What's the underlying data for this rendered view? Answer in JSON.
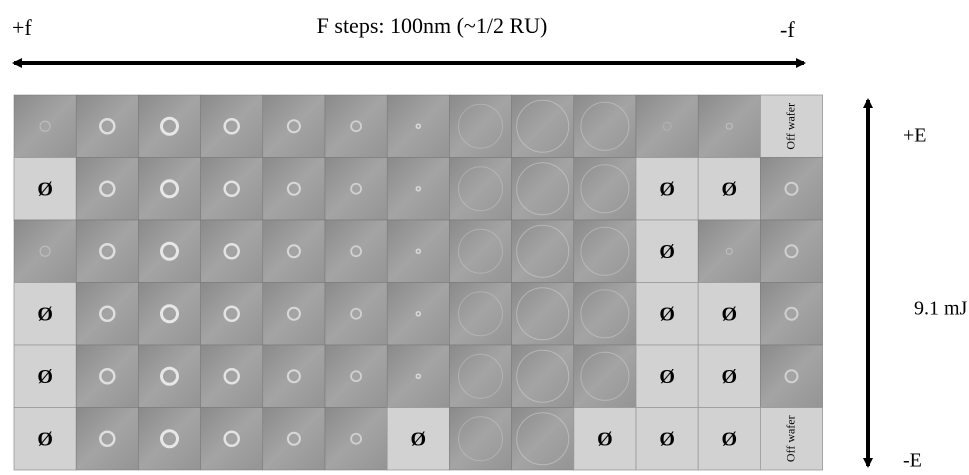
{
  "header": {
    "left": "+f",
    "title": "F steps: 100nm (~1/2 RU)",
    "right": "-f"
  },
  "side": {
    "top": "+E",
    "middle": "9.1 mJ",
    "bottom": "-E"
  },
  "matrix": {
    "rows": [
      [
        null,
        null,
        null,
        null,
        null,
        null,
        null,
        null,
        null,
        null,
        null,
        null,
        "Off wafer"
      ],
      [
        "Ø",
        null,
        null,
        null,
        null,
        null,
        null,
        null,
        null,
        null,
        "Ø",
        "Ø",
        null
      ],
      [
        null,
        null,
        null,
        null,
        null,
        null,
        null,
        null,
        null,
        null,
        "Ø",
        null,
        null
      ],
      [
        "Ø",
        null,
        null,
        null,
        null,
        null,
        null,
        null,
        null,
        null,
        "Ø",
        "Ø",
        null
      ],
      [
        "Ø",
        null,
        null,
        null,
        null,
        null,
        null,
        null,
        null,
        null,
        "Ø",
        "Ø",
        null
      ],
      [
        "Ø",
        null,
        null,
        null,
        null,
        null,
        "Ø",
        null,
        null,
        "Ø",
        "Ø",
        "Ø",
        "Off wafer"
      ]
    ]
  }
}
